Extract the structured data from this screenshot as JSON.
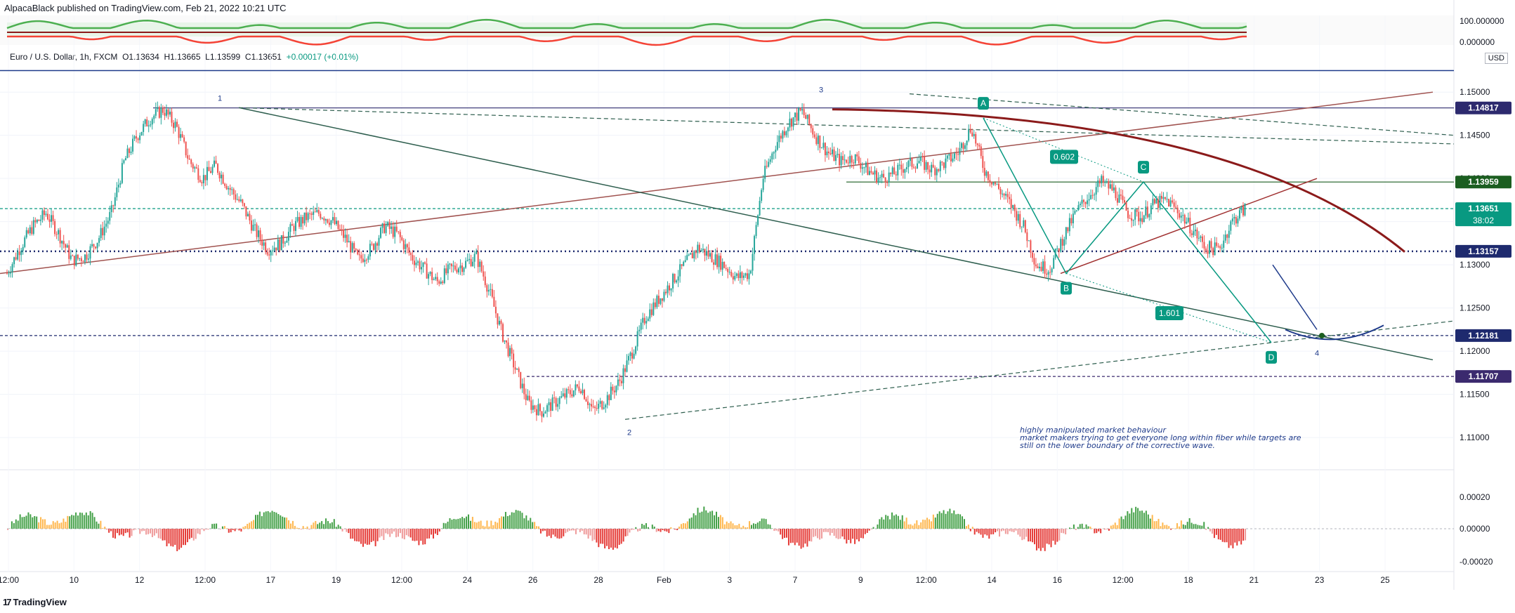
{
  "header": {
    "published": "AlpacaBlack published on TradingView.com, Feb 21, 2022 10:21 UTC"
  },
  "legend": {
    "symbol": "Euro / U.S. Dollar, 1h, FXCM",
    "open": "O1.13634",
    "high": "H1.13665",
    "low": "L1.13599",
    "close": "C1.13651",
    "change": "+0.00017 (+0.01%)"
  },
  "currency": "USD",
  "footer": {
    "brand": "TradingView"
  },
  "colors": {
    "up": "#26a69a",
    "down": "#ef5350",
    "accent_blue": "#1e3a8a",
    "label_green": "#089981",
    "curve": "#8b1a1a",
    "resistance": "#1b5e20"
  },
  "chart_data": {
    "type": "candlestick",
    "title": "",
    "ylim": [
      1.107,
      1.154
    ],
    "price_ticks": [
      "1.15000",
      "1.14500",
      "1.14000",
      "1.13500",
      "1.13000",
      "1.12500",
      "1.12000",
      "1.11500",
      "1.11000"
    ],
    "price_tick_values": [
      1.15,
      1.145,
      1.14,
      1.135,
      1.13,
      1.125,
      1.12,
      1.115,
      1.11
    ],
    "x_ticks": [
      "12:00",
      "10",
      "12",
      "12:00",
      "17",
      "19",
      "12:00",
      "24",
      "26",
      "28",
      "Feb",
      "3",
      "7",
      "9",
      "12:00",
      "14",
      "16",
      "12:00",
      "18",
      "21",
      "23",
      "25"
    ],
    "price_labels": [
      {
        "text": "1.14817",
        "value": 1.14817,
        "color": "#2d2a6e"
      },
      {
        "text": "1.13959",
        "value": 1.13959,
        "color": "#1b5e20"
      },
      {
        "text": "1.13651",
        "value": 1.13651,
        "color": "#089981",
        "sub": "38:02"
      },
      {
        "text": "1.13157",
        "value": 1.13157,
        "color": "#1e2a6e"
      },
      {
        "text": "1.12181",
        "value": 1.12181,
        "color": "#1e2a6e"
      },
      {
        "text": "1.11707",
        "value": 1.11707,
        "color": "#3b2a6e"
      }
    ],
    "wave_labels": [
      "1",
      "2",
      "3",
      "4"
    ],
    "pattern_points": [
      "A",
      "B",
      "C",
      "D"
    ],
    "fib_ratios": [
      "0.602",
      "1.601"
    ],
    "annotation": [
      "highly manipulated market behaviour",
      "market makers trying to get everyone long within fiber while targets are",
      "still on the lower boundary of the corrective wave."
    ],
    "oscillator_top": {
      "ticks": [
        "100.000000",
        "0.000000"
      ],
      "tick_values": [
        100,
        0
      ]
    },
    "oscillator_bottom": {
      "ticks": [
        "0.00020",
        "0.00000",
        "-0.00020"
      ],
      "tick_values": [
        0.0002,
        0,
        -0.0002
      ]
    },
    "price_path": [
      1.129,
      1.132,
      1.1345,
      1.136,
      1.1335,
      1.1305,
      1.131,
      1.133,
      1.136,
      1.142,
      1.145,
      1.147,
      1.148,
      1.146,
      1.142,
      1.14,
      1.1415,
      1.139,
      1.137,
      1.134,
      1.1318,
      1.1325,
      1.1345,
      1.1355,
      1.136,
      1.135,
      1.133,
      1.1305,
      1.132,
      1.1345,
      1.1335,
      1.131,
      1.1295,
      1.128,
      1.1295,
      1.13,
      1.131,
      1.127,
      1.122,
      1.118,
      1.114,
      1.113,
      1.114,
      1.115,
      1.116,
      1.113,
      1.1145,
      1.1165,
      1.12,
      1.124,
      1.126,
      1.128,
      1.13,
      1.132,
      1.131,
      1.13,
      1.1285,
      1.129,
      1.14,
      1.144,
      1.1465,
      1.1478,
      1.145,
      1.143,
      1.142,
      1.1425,
      1.141,
      1.14,
      1.1405,
      1.1415,
      1.142,
      1.141,
      1.1418,
      1.143,
      1.146,
      1.141,
      1.139,
      1.137,
      1.1345,
      1.13,
      1.1295,
      1.133,
      1.136,
      1.138,
      1.1396,
      1.1385,
      1.136,
      1.1355,
      1.137,
      1.1375,
      1.136,
      1.134,
      1.132,
      1.1318,
      1.135,
      1.1365
    ]
  }
}
